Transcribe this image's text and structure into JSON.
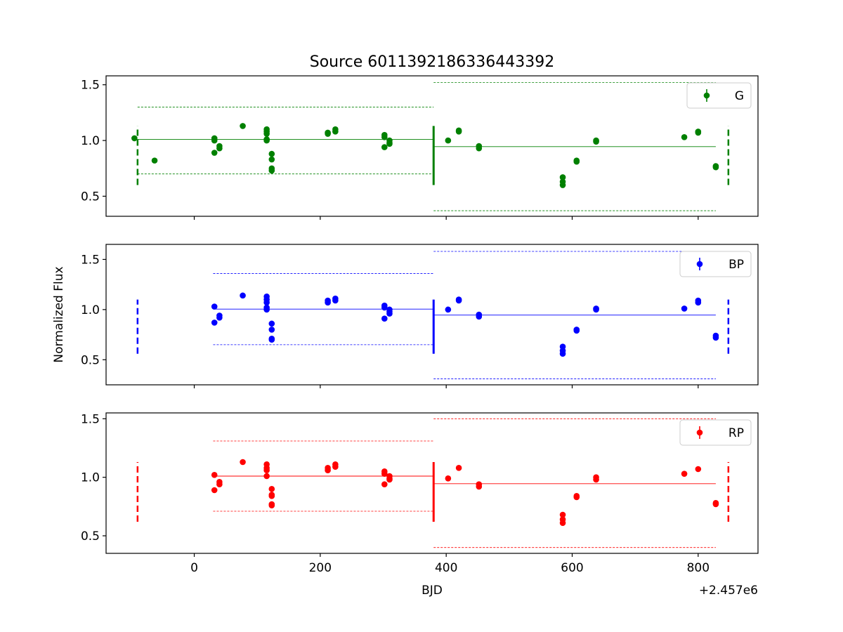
{
  "title": "Source 6011392186336443392",
  "ylabel": "Normalized Flux",
  "xlabel": "BJD",
  "x_offset_label": "+2.457e6",
  "chart_data": [
    {
      "type": "scatter",
      "band": "G",
      "color": "#008000",
      "legend": "G",
      "legend_position": "upper right",
      "xlim": [
        -140,
        895
      ],
      "ylim": [
        0.32,
        1.58
      ],
      "yticks": [
        0.5,
        1.0,
        1.5
      ],
      "ytick_labels": [
        "0.5",
        "1.0",
        "1.5"
      ],
      "xticks": [
        0,
        200,
        400,
        600,
        800
      ],
      "points": [
        [
          -95,
          1.02
        ],
        [
          -63,
          0.82
        ],
        [
          32,
          1.0
        ],
        [
          32,
          1.02
        ],
        [
          32,
          0.89
        ],
        [
          40,
          0.95
        ],
        [
          40,
          0.93
        ],
        [
          77,
          1.13
        ],
        [
          115,
          1.1
        ],
        [
          115,
          1.08
        ],
        [
          115,
          1.06
        ],
        [
          115,
          1.01
        ],
        [
          115,
          1.0
        ],
        [
          123,
          0.88
        ],
        [
          123,
          0.83
        ],
        [
          123,
          0.75
        ],
        [
          123,
          0.73
        ],
        [
          212,
          1.07
        ],
        [
          212,
          1.06
        ],
        [
          224,
          1.1
        ],
        [
          224,
          1.08
        ],
        [
          302,
          1.05
        ],
        [
          302,
          1.03
        ],
        [
          302,
          0.94
        ],
        [
          310,
          1.0
        ],
        [
          310,
          0.98
        ],
        [
          310,
          0.97
        ],
        [
          403,
          1.0
        ],
        [
          420,
          1.09
        ],
        [
          420,
          1.08
        ],
        [
          452,
          0.95
        ],
        [
          452,
          0.93
        ],
        [
          585,
          0.67
        ],
        [
          585,
          0.63
        ],
        [
          585,
          0.6
        ],
        [
          607,
          0.82
        ],
        [
          607,
          0.81
        ],
        [
          638,
          1.0
        ],
        [
          638,
          0.99
        ],
        [
          778,
          1.03
        ],
        [
          800,
          1.08
        ],
        [
          800,
          1.07
        ],
        [
          828,
          0.77
        ],
        [
          828,
          0.76
        ]
      ],
      "segments": [
        {
          "x": [
            -90,
            380
          ],
          "mean": 1.01,
          "upper": 1.3,
          "lower": 0.7
        },
        {
          "x": [
            380,
            828
          ],
          "mean": 0.945,
          "upper": 1.52,
          "lower": 0.37
        }
      ],
      "boundaries": [
        {
          "x": -90,
          "style": "dashed",
          "range": [
            0.6,
            1.13
          ]
        },
        {
          "x": 380,
          "style": "solid",
          "range": [
            0.6,
            1.13
          ]
        },
        {
          "x": 848,
          "style": "dashed",
          "range": [
            0.6,
            1.13
          ]
        }
      ]
    },
    {
      "type": "scatter",
      "band": "BP",
      "color": "#0000ff",
      "legend": "BP",
      "legend_position": "upper right",
      "xlim": [
        -140,
        895
      ],
      "ylim": [
        0.25,
        1.65
      ],
      "yticks": [
        0.5,
        1.0,
        1.5
      ],
      "ytick_labels": [
        "0.5",
        "1.0",
        "1.5"
      ],
      "xticks": [
        0,
        200,
        400,
        600,
        800
      ],
      "points": [
        [
          32,
          1.03
        ],
        [
          32,
          0.87
        ],
        [
          40,
          0.94
        ],
        [
          40,
          0.92
        ],
        [
          77,
          1.14
        ],
        [
          115,
          1.13
        ],
        [
          115,
          1.1
        ],
        [
          115,
          1.07
        ],
        [
          115,
          1.02
        ],
        [
          115,
          1.0
        ],
        [
          123,
          0.86
        ],
        [
          123,
          0.8
        ],
        [
          123,
          0.71
        ],
        [
          123,
          0.7
        ],
        [
          212,
          1.09
        ],
        [
          212,
          1.07
        ],
        [
          224,
          1.11
        ],
        [
          224,
          1.09
        ],
        [
          302,
          1.04
        ],
        [
          302,
          1.02
        ],
        [
          302,
          0.91
        ],
        [
          310,
          1.0
        ],
        [
          310,
          0.98
        ],
        [
          310,
          0.96
        ],
        [
          403,
          1.0
        ],
        [
          420,
          1.1
        ],
        [
          420,
          1.09
        ],
        [
          452,
          0.95
        ],
        [
          452,
          0.93
        ],
        [
          585,
          0.63
        ],
        [
          585,
          0.59
        ],
        [
          585,
          0.56
        ],
        [
          607,
          0.8
        ],
        [
          607,
          0.79
        ],
        [
          638,
          1.01
        ],
        [
          638,
          1.0
        ],
        [
          778,
          1.01
        ],
        [
          800,
          1.09
        ],
        [
          800,
          1.07
        ],
        [
          828,
          0.74
        ],
        [
          828,
          0.72
        ]
      ],
      "segments": [
        {
          "x": [
            30,
            380
          ],
          "mean": 1.005,
          "upper": 1.36,
          "lower": 0.65
        },
        {
          "x": [
            380,
            828
          ],
          "mean": 0.945,
          "upper": 1.58,
          "lower": 0.31
        }
      ],
      "boundaries": [
        {
          "x": -90,
          "style": "dashed",
          "range": [
            0.56,
            1.1
          ]
        },
        {
          "x": 380,
          "style": "solid",
          "range": [
            0.56,
            1.1
          ]
        },
        {
          "x": 848,
          "style": "dashed",
          "range": [
            0.56,
            1.1
          ]
        }
      ]
    },
    {
      "type": "scatter",
      "band": "RP",
      "color": "#ff0000",
      "legend": "RP",
      "legend_position": "upper right",
      "xlim": [
        -140,
        895
      ],
      "ylim": [
        0.35,
        1.55
      ],
      "yticks": [
        0.5,
        1.0,
        1.5
      ],
      "ytick_labels": [
        "0.5",
        "1.0",
        "1.5"
      ],
      "xticks": [
        0,
        200,
        400,
        600,
        800
      ],
      "xtick_labels": [
        "0",
        "200",
        "400",
        "600",
        "800"
      ],
      "points": [
        [
          32,
          1.02
        ],
        [
          32,
          0.89
        ],
        [
          40,
          0.96
        ],
        [
          40,
          0.94
        ],
        [
          77,
          1.13
        ],
        [
          115,
          1.11
        ],
        [
          115,
          1.08
        ],
        [
          115,
          1.06
        ],
        [
          115,
          1.01
        ],
        [
          123,
          0.9
        ],
        [
          123,
          0.85
        ],
        [
          123,
          0.84
        ],
        [
          123,
          0.77
        ],
        [
          123,
          0.76
        ],
        [
          212,
          1.08
        ],
        [
          212,
          1.06
        ],
        [
          224,
          1.11
        ],
        [
          224,
          1.09
        ],
        [
          302,
          1.05
        ],
        [
          302,
          1.03
        ],
        [
          302,
          0.94
        ],
        [
          310,
          1.01
        ],
        [
          310,
          0.99
        ],
        [
          310,
          0.98
        ],
        [
          403,
          0.99
        ],
        [
          420,
          1.08
        ],
        [
          452,
          0.94
        ],
        [
          452,
          0.92
        ],
        [
          585,
          0.68
        ],
        [
          585,
          0.64
        ],
        [
          585,
          0.61
        ],
        [
          607,
          0.84
        ],
        [
          607,
          0.83
        ],
        [
          638,
          1.0
        ],
        [
          638,
          0.98
        ],
        [
          778,
          1.03
        ],
        [
          800,
          1.07
        ],
        [
          828,
          0.78
        ],
        [
          828,
          0.77
        ]
      ],
      "segments": [
        {
          "x": [
            30,
            380
          ],
          "mean": 1.01,
          "upper": 1.31,
          "lower": 0.71
        },
        {
          "x": [
            380,
            828
          ],
          "mean": 0.945,
          "upper": 1.5,
          "lower": 0.4
        }
      ],
      "boundaries": [
        {
          "x": -90,
          "style": "dashed",
          "range": [
            0.62,
            1.13
          ]
        },
        {
          "x": 380,
          "style": "solid",
          "range": [
            0.62,
            1.13
          ]
        },
        {
          "x": 848,
          "style": "dashed",
          "range": [
            0.62,
            1.13
          ]
        }
      ]
    }
  ]
}
